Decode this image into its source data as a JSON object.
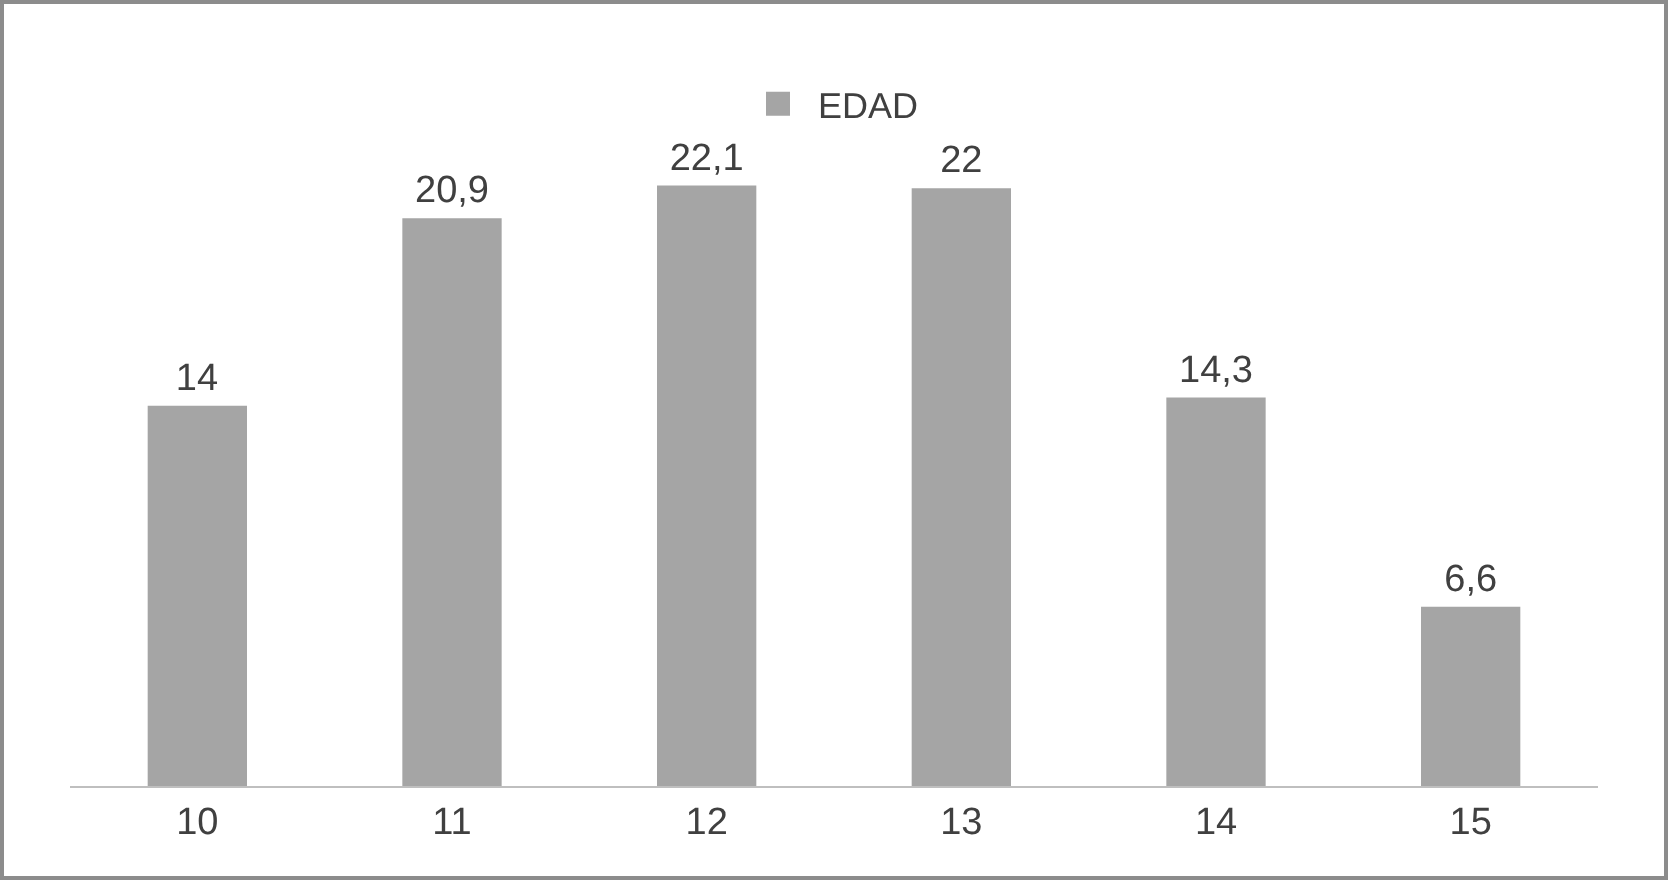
{
  "chart_data": {
    "type": "bar",
    "categories": [
      "10",
      "11",
      "12",
      "13",
      "14",
      "15"
    ],
    "series": [
      {
        "name": "EDAD",
        "color": "#a5a5a5",
        "values": [
          14,
          20.9,
          22.1,
          22,
          14.3,
          6.6
        ],
        "value_labels": [
          "14",
          "20,9",
          "22,1",
          "22",
          "14,3",
          "6,6"
        ]
      }
    ],
    "legend": "top",
    "tick_labels": "x"
  }
}
